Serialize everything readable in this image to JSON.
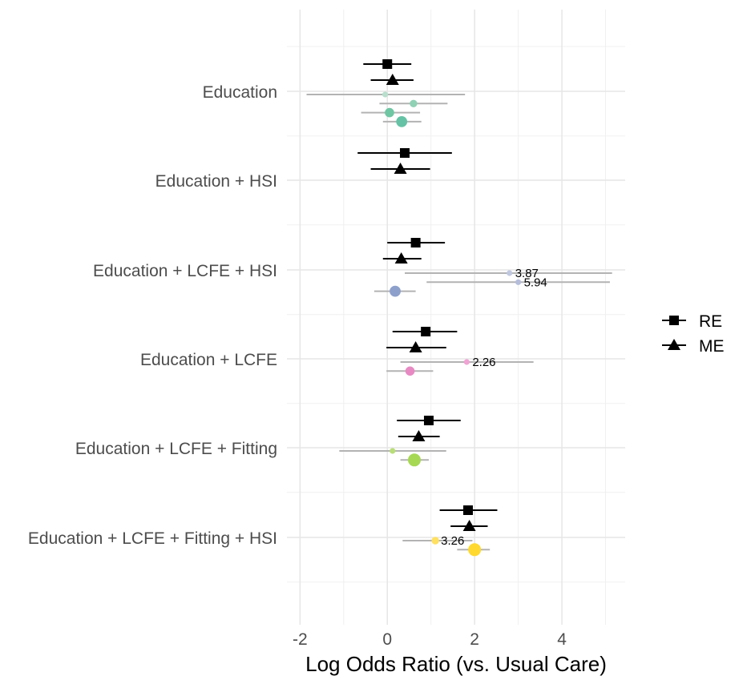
{
  "chart_data": {
    "type": "forest",
    "title": "",
    "xlabel": "Log Odds Ratio (vs. Usual Care)",
    "ylabel": "",
    "xlim": [
      -2.3,
      5.45
    ],
    "xticks": [
      -2,
      0,
      2,
      4
    ],
    "grid": true,
    "legend": {
      "position": "right",
      "entries": [
        {
          "label": "RE",
          "shape": "square"
        },
        {
          "label": "ME",
          "shape": "triangle"
        }
      ]
    },
    "categories": [
      "Education",
      "Education + HSI",
      "Education + LCFE + HSI",
      "Education + LCFE",
      "Education + LCFE + Fitting",
      "Education + LCFE + Fitting + HSI"
    ],
    "pooled": [
      {
        "group": 0,
        "model": "RE",
        "est": 0.0,
        "lo": -0.55,
        "hi": 0.55
      },
      {
        "group": 0,
        "model": "ME",
        "est": 0.12,
        "lo": -0.38,
        "hi": 0.6
      },
      {
        "group": 1,
        "model": "RE",
        "est": 0.4,
        "lo": -0.68,
        "hi": 1.48
      },
      {
        "group": 1,
        "model": "ME",
        "est": 0.3,
        "lo": -0.38,
        "hi": 0.98
      },
      {
        "group": 2,
        "model": "RE",
        "est": 0.65,
        "lo": 0.0,
        "hi": 1.32
      },
      {
        "group": 2,
        "model": "ME",
        "est": 0.32,
        "lo": -0.1,
        "hi": 0.78
      },
      {
        "group": 3,
        "model": "RE",
        "est": 0.88,
        "lo": 0.12,
        "hi": 1.6
      },
      {
        "group": 3,
        "model": "ME",
        "est": 0.65,
        "lo": -0.02,
        "hi": 1.35
      },
      {
        "group": 4,
        "model": "RE",
        "est": 0.95,
        "lo": 0.22,
        "hi": 1.68
      },
      {
        "group": 4,
        "model": "ME",
        "est": 0.72,
        "lo": 0.25,
        "hi": 1.2
      },
      {
        "group": 5,
        "model": "RE",
        "est": 1.85,
        "lo": 1.2,
        "hi": 2.52
      },
      {
        "group": 5,
        "model": "ME",
        "est": 1.88,
        "lo": 1.45,
        "hi": 2.3
      }
    ],
    "studies": [
      {
        "group": 0,
        "est": -0.05,
        "lo": -1.85,
        "hi": 1.78,
        "color": "#b8dfcc",
        "weight": 1
      },
      {
        "group": 0,
        "est": 0.6,
        "lo": -0.18,
        "hi": 1.38,
        "color": "#8fd1b4",
        "weight": 2
      },
      {
        "group": 0,
        "est": 0.05,
        "lo": -0.6,
        "hi": 0.75,
        "color": "#6fc6a3",
        "weight": 3
      },
      {
        "group": 0,
        "est": 0.33,
        "lo": -0.1,
        "hi": 0.78,
        "color": "#66c2a5",
        "weight": 4
      },
      {
        "group": 2,
        "est": 2.8,
        "lo": 0.4,
        "hi": 5.15,
        "color": "#c0c8e0",
        "weight": 1,
        "label": "3.87"
      },
      {
        "group": 2,
        "est": 3.0,
        "lo": 0.9,
        "hi": 5.1,
        "color": "#b5bddb",
        "weight": 1,
        "label": "5.94"
      },
      {
        "group": 2,
        "est": 0.18,
        "lo": -0.3,
        "hi": 0.65,
        "color": "#8da0cb",
        "weight": 4
      },
      {
        "group": 3,
        "est": 1.82,
        "lo": 0.3,
        "hi": 3.35,
        "color": "#f0a3d4",
        "weight": 1,
        "label": "2.26"
      },
      {
        "group": 3,
        "est": 0.52,
        "lo": -0.02,
        "hi": 1.05,
        "color": "#e78ac3",
        "weight": 3
      },
      {
        "group": 4,
        "est": 0.12,
        "lo": -1.1,
        "hi": 1.35,
        "color": "#b8de77",
        "weight": 1
      },
      {
        "group": 4,
        "est": 0.62,
        "lo": 0.3,
        "hi": 0.95,
        "color": "#a6d854",
        "weight": 5
      },
      {
        "group": 5,
        "est": 1.1,
        "lo": 0.35,
        "hi": 1.95,
        "color": "#ffe060",
        "weight": 2,
        "label": "3.26"
      },
      {
        "group": 5,
        "est": 2.0,
        "lo": 1.6,
        "hi": 2.35,
        "color": "#ffd92f",
        "weight": 5
      }
    ]
  }
}
